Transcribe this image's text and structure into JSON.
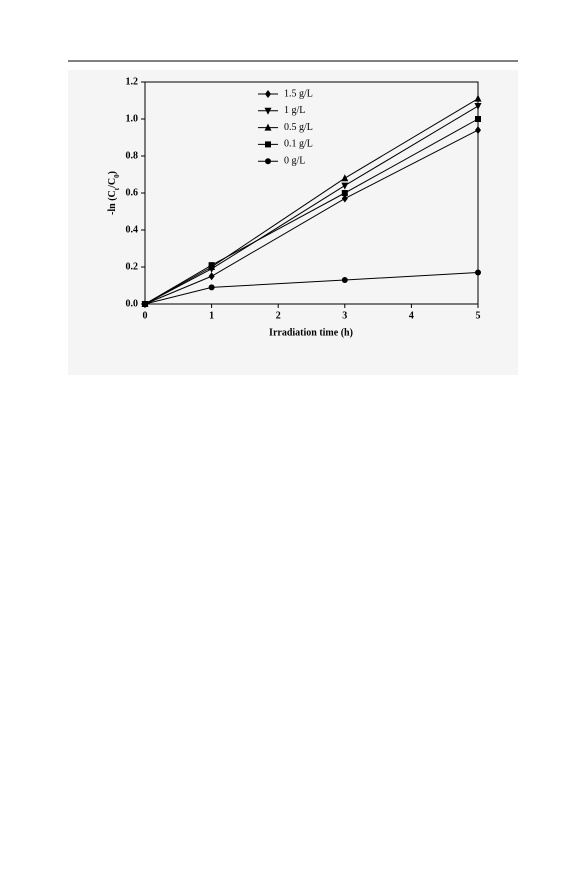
{
  "chart_data": {
    "type": "line",
    "xlabel": "Irradiation time (h)",
    "ylabel_parts": [
      "-ln (C",
      "t",
      "/C",
      "0",
      ")"
    ],
    "x": [
      0,
      1,
      3,
      5
    ],
    "series": [
      {
        "name": "1.5 g/L",
        "marker": "diamond",
        "color": "#000000",
        "values": [
          0,
          0.15,
          0.57,
          0.94
        ]
      },
      {
        "name": "1 g/L",
        "marker": "triangle-down",
        "color": "#000000",
        "values": [
          0,
          0.19,
          0.64,
          1.07
        ]
      },
      {
        "name": "0.5 g/L",
        "marker": "triangle-up",
        "color": "#000000",
        "values": [
          0,
          0.2,
          0.68,
          1.11
        ]
      },
      {
        "name": "0.1 g/L",
        "marker": "square",
        "color": "#000000",
        "values": [
          0,
          0.21,
          0.6,
          1.0
        ]
      },
      {
        "name": "0 g/L",
        "marker": "circle",
        "color": "#000000",
        "values": [
          0,
          0.09,
          0.13,
          0.17
        ]
      }
    ],
    "xlim": [
      0,
      5
    ],
    "xticks": [
      0,
      1,
      2,
      3,
      4,
      5
    ],
    "ylim": [
      0,
      1.2
    ],
    "yticks": [
      {
        "value": 0,
        "label": "0.0"
      },
      {
        "value": 0.2,
        "label": "0.2"
      },
      {
        "value": 0.4,
        "label": "0.4"
      },
      {
        "value": 0.6,
        "label": "0.6"
      },
      {
        "value": 0.8,
        "label": "0.8"
      },
      {
        "value": 1.0,
        "label": "1.0"
      },
      {
        "value": 1.2,
        "label": "1.2"
      }
    ],
    "legend": "upper-left",
    "grid": false
  }
}
